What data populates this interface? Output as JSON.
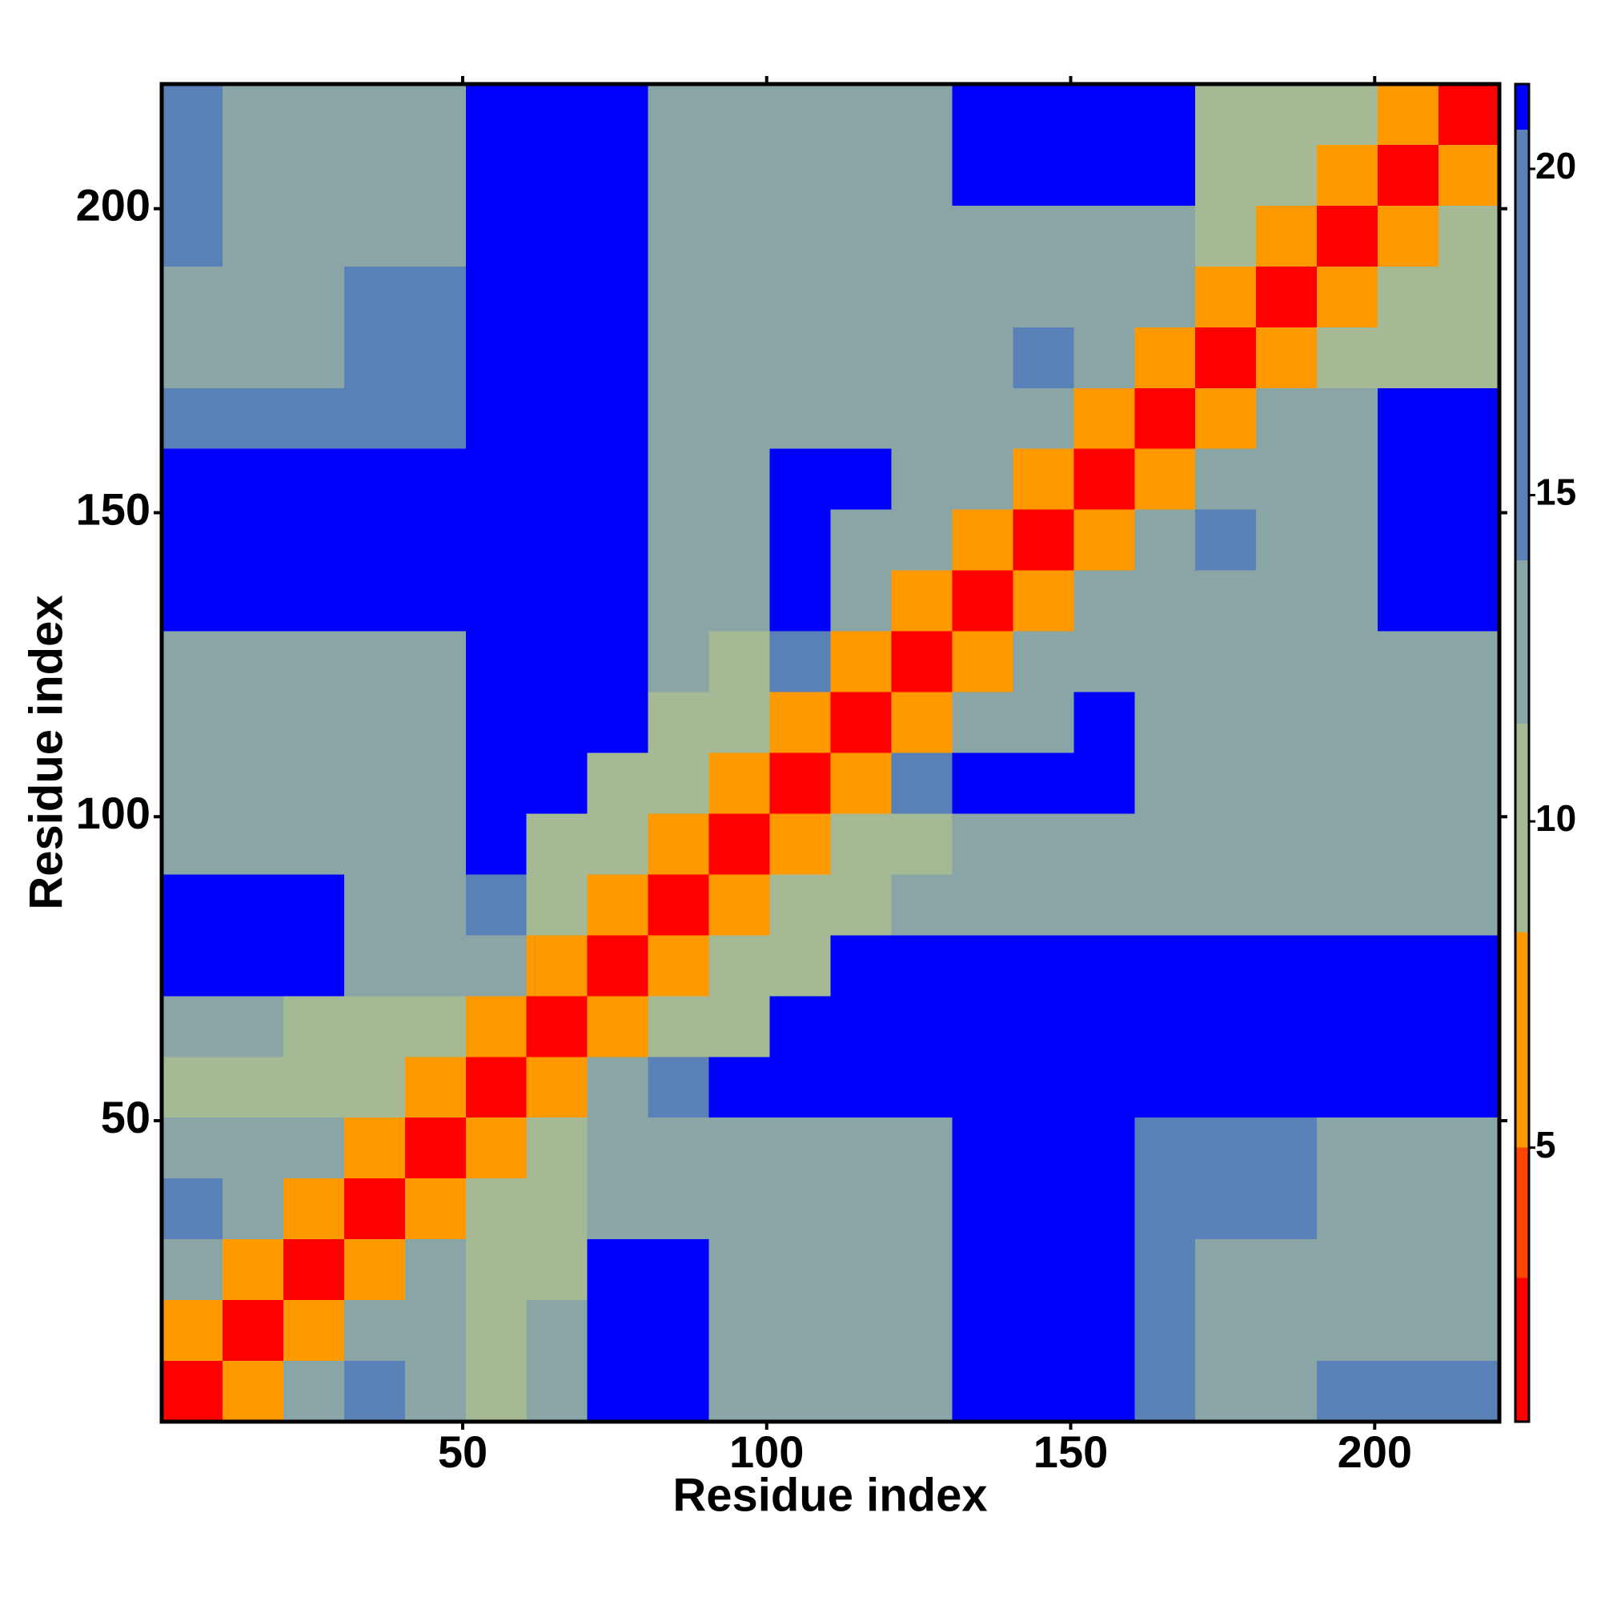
{
  "chart_data": {
    "type": "heatmap",
    "xlabel": "Residue index",
    "ylabel": "Residue index",
    "x": [
      5.5,
      15.5,
      25.5,
      35.5,
      45.5,
      55.5,
      65.5,
      75.5,
      85.5,
      95.5,
      105.5,
      115.5,
      125.5,
      135.5,
      145.5,
      155.5,
      165.5,
      175.5,
      185.5,
      195.5,
      205.5,
      215.5
    ],
    "y": [
      5.5,
      15.5,
      25.5,
      35.5,
      45.5,
      55.5,
      65.5,
      75.5,
      85.5,
      95.5,
      105.5,
      115.5,
      125.5,
      135.5,
      145.5,
      155.5,
      165.5,
      175.5,
      185.5,
      195.5,
      205.5,
      215.5
    ],
    "z": [
      [
        3,
        7,
        12,
        15,
        12,
        11,
        12,
        21,
        21,
        13,
        12,
        12,
        13,
        21,
        21,
        21,
        16,
        13,
        13,
        16,
        16,
        16
      ],
      [
        7,
        3,
        7,
        12,
        12,
        11,
        12,
        21,
        21,
        13,
        12,
        12,
        13,
        21,
        21,
        21,
        16,
        12,
        12,
        12,
        12,
        12
      ],
      [
        12,
        7,
        3,
        7,
        12,
        11,
        11,
        21,
        21,
        13,
        12,
        12,
        13,
        21,
        21,
        21,
        16,
        12,
        12,
        12,
        12,
        12
      ],
      [
        15,
        12,
        7,
        3,
        7,
        11,
        11,
        12,
        12,
        12,
        12,
        12,
        12,
        21,
        21,
        21,
        16,
        16,
        16,
        12,
        12,
        12
      ],
      [
        12,
        12,
        12,
        7,
        3,
        7,
        11,
        12,
        12,
        12,
        12,
        12,
        12,
        21,
        21,
        21,
        16,
        16,
        16,
        12,
        12,
        12
      ],
      [
        11,
        11,
        11,
        11,
        7,
        3,
        7,
        12,
        15,
        21,
        21,
        21,
        21,
        21,
        21,
        21,
        21,
        21,
        21,
        21,
        21,
        21
      ],
      [
        12,
        12,
        11,
        11,
        11,
        7,
        3,
        7,
        11,
        11,
        21,
        21,
        21,
        21,
        21,
        21,
        21,
        21,
        21,
        21,
        21,
        21
      ],
      [
        21,
        21,
        21,
        12,
        12,
        12,
        7,
        3,
        7,
        11,
        11,
        21,
        21,
        21,
        21,
        21,
        21,
        21,
        21,
        21,
        21,
        21
      ],
      [
        21,
        21,
        21,
        12,
        12,
        15,
        11,
        7,
        3,
        7,
        11,
        11,
        12,
        12,
        12,
        12,
        12,
        13,
        13,
        13,
        13,
        13
      ],
      [
        13,
        13,
        13,
        12,
        12,
        21,
        11,
        11,
        7,
        3,
        7,
        11,
        11,
        12,
        12,
        12,
        12,
        12,
        12,
        12,
        12,
        13
      ],
      [
        12,
        12,
        12,
        12,
        12,
        21,
        21,
        11,
        11,
        7,
        3,
        7,
        15,
        21,
        21,
        21,
        12,
        12,
        12,
        12,
        12,
        13
      ],
      [
        12,
        12,
        12,
        12,
        12,
        21,
        21,
        21,
        11,
        11,
        7,
        3,
        7,
        13,
        13,
        21,
        12,
        12,
        12,
        12,
        12,
        13
      ],
      [
        13,
        13,
        13,
        12,
        12,
        21,
        21,
        21,
        12,
        11,
        15,
        7,
        3,
        7,
        13,
        13,
        13,
        13,
        13,
        13,
        13,
        13
      ],
      [
        21,
        21,
        21,
        21,
        21,
        21,
        21,
        21,
        12,
        12,
        21,
        13,
        7,
        3,
        7,
        13,
        13,
        13,
        13,
        13,
        21,
        21
      ],
      [
        21,
        21,
        21,
        21,
        21,
        21,
        21,
        21,
        12,
        12,
        21,
        13,
        13,
        7,
        3,
        7,
        13,
        18,
        13,
        13,
        21,
        21
      ],
      [
        21,
        21,
        21,
        21,
        21,
        21,
        21,
        21,
        12,
        12,
        21,
        21,
        13,
        13,
        7,
        3,
        7,
        13,
        13,
        13,
        21,
        21
      ],
      [
        16,
        16,
        16,
        16,
        16,
        21,
        21,
        21,
        12,
        12,
        12,
        12,
        13,
        13,
        13,
        7,
        3,
        7,
        13,
        13,
        21,
        21
      ],
      [
        13,
        12,
        12,
        16,
        16,
        21,
        21,
        21,
        13,
        12,
        12,
        12,
        13,
        13,
        18,
        13,
        7,
        3,
        7,
        11,
        11,
        11
      ],
      [
        13,
        12,
        12,
        16,
        16,
        21,
        21,
        21,
        13,
        12,
        12,
        12,
        13,
        13,
        13,
        13,
        13,
        7,
        3,
        7,
        11,
        11
      ],
      [
        16,
        12,
        12,
        12,
        12,
        21,
        21,
        21,
        13,
        12,
        12,
        12,
        13,
        13,
        13,
        13,
        13,
        11,
        7,
        3,
        7,
        11
      ],
      [
        16,
        12,
        12,
        12,
        12,
        21,
        21,
        21,
        13,
        12,
        12,
        12,
        13,
        21,
        21,
        21,
        21,
        11,
        11,
        7,
        3,
        7
      ],
      [
        16,
        12,
        12,
        12,
        12,
        21,
        21,
        21,
        13,
        13,
        13,
        13,
        13,
        21,
        21,
        21,
        21,
        11,
        11,
        11,
        7,
        3
      ]
    ],
    "xlim": [
      0.5,
      220.5
    ],
    "ylim": [
      0.5,
      220.5
    ],
    "xticks": [
      50,
      100,
      150,
      200
    ],
    "yticks": [
      50,
      100,
      150,
      200
    ],
    "zlim": [
      0.8,
      21.3
    ],
    "zticks": [
      5,
      10,
      15,
      20
    ],
    "colorscale": [
      {
        "to": 3,
        "color": "#ff0000"
      },
      {
        "to": 5,
        "color": "#ff4500"
      },
      {
        "to": 8.3,
        "color": "#ff9900"
      },
      {
        "to": 11.5,
        "color": "#a4b994"
      },
      {
        "to": 14,
        "color": "#8aa5a6"
      },
      {
        "to": 20.6,
        "color": "#5a80b8"
      },
      {
        "to": 21.3,
        "color": "#0000ff"
      }
    ]
  }
}
